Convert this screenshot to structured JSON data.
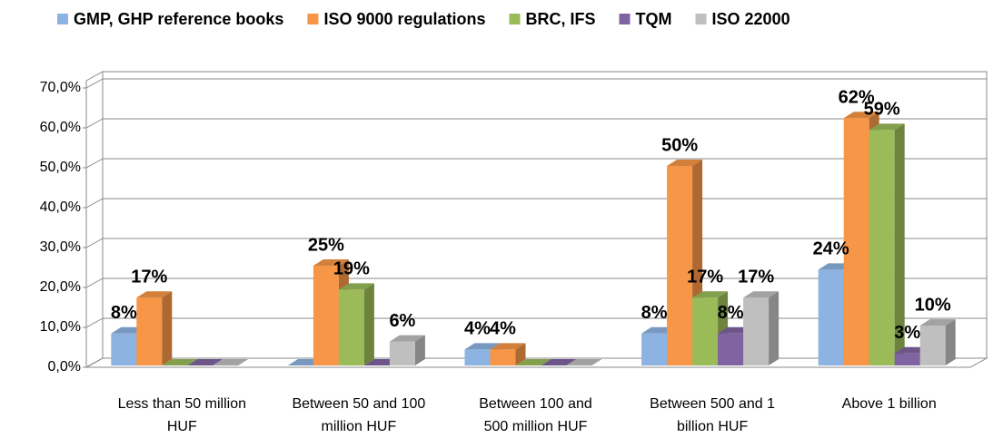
{
  "chart_data": {
    "type": "bar3d",
    "categories": [
      "Less than 50 million HUF",
      "Between 50 and 100 million HUF",
      "Between 100 and 500 million HUF",
      "Between 500 and 1 billion HUF",
      "Above 1 billion"
    ],
    "series": [
      {
        "name": "GMP, GHP reference books",
        "color": "#8db3e2",
        "values": [
          8,
          0,
          4,
          8,
          24
        ],
        "value_labels": [
          "8%",
          null,
          "4%",
          "8%",
          "24%"
        ]
      },
      {
        "name": "ISO 9000 regulations",
        "color": "#f79646",
        "values": [
          17,
          25,
          4,
          50,
          62
        ],
        "value_labels": [
          "17%",
          "25%",
          "4%",
          "50%",
          "62%"
        ]
      },
      {
        "name": "BRC, IFS",
        "color": "#9bbb59",
        "values": [
          0,
          19,
          0,
          17,
          59
        ],
        "value_labels": [
          null,
          "19%",
          null,
          "17%",
          "59%"
        ]
      },
      {
        "name": "TQM",
        "color": "#8064a2",
        "values": [
          0,
          0,
          0,
          8,
          3
        ],
        "value_labels": [
          null,
          null,
          null,
          "8%",
          "3%"
        ]
      },
      {
        "name": "ISO 22000",
        "color": "#bfbfbf",
        "values": [
          0,
          6,
          0,
          17,
          10
        ],
        "value_labels": [
          null,
          "6%",
          null,
          "17%",
          "10%"
        ]
      }
    ],
    "ylim": [
      0,
      70
    ],
    "yticks": [
      {
        "value": 0,
        "label": "0,0%"
      },
      {
        "value": 10,
        "label": "10,0%"
      },
      {
        "value": 20,
        "label": "20,0%"
      },
      {
        "value": 30,
        "label": "30,0%"
      },
      {
        "value": 40,
        "label": "40,0%"
      },
      {
        "value": 50,
        "label": "50,0%"
      },
      {
        "value": 60,
        "label": "60,0%"
      },
      {
        "value": 70,
        "label": "70,0%"
      }
    ],
    "grid": true,
    "legend": "top"
  }
}
